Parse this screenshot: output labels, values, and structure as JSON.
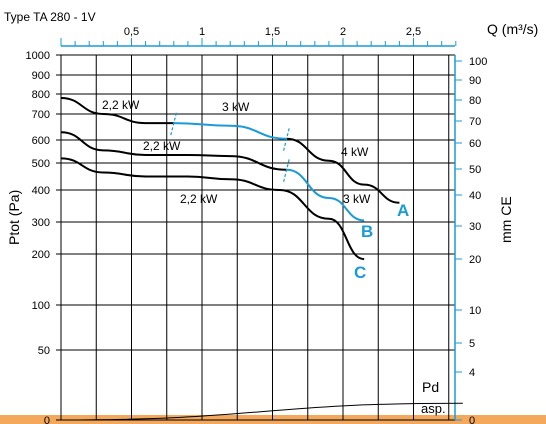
{
  "chart_data": {
    "type": "line",
    "title": "Type TA 280 - 1V",
    "x_label": "Q (m³/s)",
    "y_left_label": "Ptot  (Pa)",
    "y_right_label": "mm CE",
    "y_scale": "log",
    "x_ticks": [
      "0,5",
      "1",
      "1,5",
      "2",
      "2,5"
    ],
    "x_tick_values": [
      0.5,
      1,
      1.5,
      2,
      2.5
    ],
    "xlim": [
      0,
      2.85
    ],
    "y_left_ticks": [
      "1000",
      "900",
      "800",
      "700",
      "600",
      "500",
      "400",
      "300",
      "200",
      "100",
      "50",
      "0"
    ],
    "y_left_tick_values": [
      1000,
      900,
      800,
      700,
      600,
      500,
      400,
      300,
      200,
      100,
      50,
      0
    ],
    "y_right_ticks": [
      "100",
      "90",
      "80",
      "70",
      "60",
      "50",
      "40",
      "30",
      "20",
      "10",
      "5",
      "4",
      "0"
    ],
    "y_right_tick_values": [
      100,
      90,
      80,
      70,
      60,
      50,
      40,
      30,
      20,
      10,
      5,
      4,
      0
    ],
    "series": [
      {
        "name": "A",
        "segments": [
          {
            "motor": "2,2 kW",
            "color": "#000000",
            "x": [
              0,
              0.3,
              0.6,
              0.8
            ],
            "y": [
              780,
              700,
              665,
              665
            ]
          },
          {
            "motor": "3 kW",
            "color": "#1a9bd7",
            "x": [
              0.8,
              1.2,
              1.6
            ],
            "y": [
              665,
              655,
              605
            ]
          },
          {
            "motor": "4 kW",
            "color": "#000000",
            "x": [
              1.6,
              1.9,
              2.15,
              2.4
            ],
            "y": [
              605,
              510,
              420,
              360
            ]
          }
        ]
      },
      {
        "name": "B",
        "segments": [
          {
            "motor": "2,2 kW",
            "color": "#000000",
            "x": [
              0,
              0.3,
              0.6,
              0.9,
              1.2,
              1.6
            ],
            "y": [
              630,
              555,
              535,
              535,
              530,
              475
            ]
          },
          {
            "motor": "3 kW",
            "color": "#1a9bd7",
            "x": [
              1.6,
              1.9,
              2.15
            ],
            "y": [
              475,
              375,
              305
            ]
          }
        ]
      },
      {
        "name": "C",
        "segments": [
          {
            "motor": "2,2 kW",
            "color": "#000000",
            "x": [
              0,
              0.3,
              0.6,
              0.9,
              1.2,
              1.55,
              1.9,
              2.15
            ],
            "y": [
              520,
              465,
              450,
              450,
              440,
              400,
              310,
              190
            ]
          }
        ]
      },
      {
        "name": "Pd asp.",
        "segments": [
          {
            "color": "#000000",
            "x": [
              0,
              2.85
            ],
            "y": [
              0,
              12
            ]
          }
        ]
      }
    ],
    "curve_labels": [
      "A",
      "B",
      "C"
    ],
    "curve_label_color": "#1a9bd7",
    "motor_labels": [
      "2,2 kW",
      "3 kW",
      "2,2 kW",
      "4 kW",
      "3 kW",
      "2,2 kW"
    ],
    "pd_label": "Pd",
    "asp_label": "asp.",
    "grid": true
  }
}
